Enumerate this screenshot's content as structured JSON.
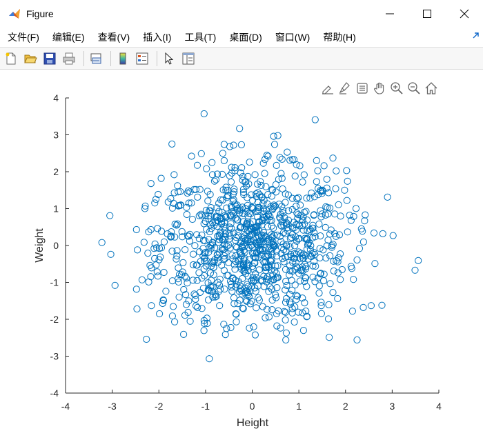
{
  "window": {
    "title": "Figure",
    "icon": "matlab-icon",
    "controls": [
      "minimize-icon",
      "maximize-icon",
      "close-icon"
    ]
  },
  "menu": {
    "items": [
      {
        "label": "文件(F)"
      },
      {
        "label": "编辑(E)"
      },
      {
        "label": "查看(V)"
      },
      {
        "label": "插入(I)"
      },
      {
        "label": "工具(T)"
      },
      {
        "label": "桌面(D)"
      },
      {
        "label": "窗口(W)"
      },
      {
        "label": "帮助(H)"
      }
    ]
  },
  "toolbar": {
    "icons": [
      "new-figure-icon",
      "open-file-icon",
      "save-icon",
      "print-icon",
      "link-plot-icon",
      "colorbar-icon",
      "legend-icon",
      "edit-plot-icon",
      "property-inspector-icon"
    ]
  },
  "axes_toolbar": {
    "icons": [
      "data-tips-icon",
      "brush-icon",
      "export-icon",
      "pan-icon",
      "zoom-in-icon",
      "zoom-out-icon",
      "home-icon"
    ]
  },
  "colors": {
    "marker": "#0072bd",
    "axis": "#262626"
  },
  "chart_data": {
    "type": "scatter",
    "title": "",
    "xlabel": "Height",
    "ylabel": "Weight",
    "xlim": [
      -4,
      4
    ],
    "ylim": [
      -4,
      4
    ],
    "xticks": [
      "-4",
      "-3",
      "-2",
      "-1",
      "0",
      "1",
      "2",
      "3",
      "4"
    ],
    "yticks": [
      "-4",
      "-3",
      "-2",
      "-1",
      "0",
      "1",
      "2",
      "3",
      "4"
    ],
    "grid": false,
    "marker": "open-circle",
    "points": [
      [
        -1.03,
        3.57
      ],
      [
        -0.27,
        3.17
      ],
      [
        0.46,
        2.96
      ],
      [
        0.55,
        2.98
      ],
      [
        1.35,
        3.41
      ],
      [
        -1.72,
        2.75
      ],
      [
        -0.6,
        2.74
      ],
      [
        -0.48,
        2.68
      ],
      [
        -0.4,
        2.72
      ],
      [
        -0.23,
        2.73
      ],
      [
        0.48,
        2.74
      ],
      [
        0.75,
        2.53
      ],
      [
        -1.3,
        2.42
      ],
      [
        -1.09,
        2.49
      ],
      [
        -0.6,
        2.3
      ],
      [
        0.34,
        2.42
      ],
      [
        0.86,
        2.33
      ],
      [
        1.38,
        2.3
      ],
      [
        1.73,
        2.37
      ],
      [
        -0.98,
        2.08
      ],
      [
        -0.37,
        2.11
      ],
      [
        0.24,
        2.23
      ],
      [
        0.52,
        2.17
      ],
      [
        1.02,
        2.16
      ],
      [
        1.54,
        2.16
      ],
      [
        1.8,
        2.02
      ],
      [
        -2.17,
        1.68
      ],
      [
        -1.95,
        1.82
      ],
      [
        -1.6,
        1.62
      ],
      [
        -0.85,
        1.92
      ],
      [
        -0.25,
        1.97
      ],
      [
        -0.2,
        1.87
      ],
      [
        0.06,
        1.92
      ],
      [
        0.64,
        1.82
      ],
      [
        0.92,
        1.88
      ],
      [
        1.08,
        1.72
      ],
      [
        1.38,
        1.73
      ],
      [
        1.79,
        1.54
      ],
      [
        1.98,
        1.5
      ],
      [
        -2.3,
        1.0
      ],
      [
        -1.67,
        1.43
      ],
      [
        -1.39,
        1.42
      ],
      [
        -1.12,
        1.52
      ],
      [
        -0.56,
        1.58
      ],
      [
        -0.18,
        1.38
      ],
      [
        0.21,
        1.32
      ],
      [
        0.51,
        1.45
      ],
      [
        0.96,
        1.27
      ],
      [
        1.27,
        1.42
      ],
      [
        1.58,
        1.05
      ],
      [
        2.03,
        1.22
      ],
      [
        2.9,
        1.31
      ],
      [
        -3.05,
        0.81
      ],
      [
        -2.48,
        0.43
      ],
      [
        -2.22,
        0.37
      ],
      [
        -2.03,
        0.46
      ],
      [
        -1.66,
        0.23
      ],
      [
        -1.28,
        0.71
      ],
      [
        -0.92,
        0.94
      ],
      [
        -0.66,
        0.59
      ],
      [
        -0.41,
        0.86
      ],
      [
        -0.1,
        0.64
      ],
      [
        0.12,
        0.92
      ],
      [
        0.38,
        0.78
      ],
      [
        0.66,
        0.95
      ],
      [
        0.94,
        0.56
      ],
      [
        1.32,
        0.82
      ],
      [
        1.69,
        0.42
      ],
      [
        2.12,
        0.68
      ],
      [
        2.42,
        0.83
      ],
      [
        2.61,
        0.34
      ],
      [
        -3.22,
        0.08
      ],
      [
        -3.03,
        -0.24
      ],
      [
        -2.46,
        -0.12
      ],
      [
        -2.19,
        -0.54
      ],
      [
        -1.97,
        -0.31
      ],
      [
        -1.61,
        -0.14
      ],
      [
        -1.34,
        0.12
      ],
      [
        -1.02,
        -0.21
      ],
      [
        -0.74,
        0.25
      ],
      [
        -0.47,
        -0.07
      ],
      [
        -0.16,
        0.19
      ],
      [
        0.18,
        -0.11
      ],
      [
        0.47,
        0.28
      ],
      [
        0.81,
        -0.04
      ],
      [
        1.16,
        0.17
      ],
      [
        1.52,
        -0.12
      ],
      [
        1.87,
        0.29
      ],
      [
        2.3,
        -0.08
      ],
      [
        2.8,
        0.32
      ],
      [
        3.02,
        0.27
      ],
      [
        -2.94,
        -1.08
      ],
      [
        -2.36,
        -0.93
      ],
      [
        -2.02,
        -0.83
      ],
      [
        -1.85,
        -1.24
      ],
      [
        -1.49,
        -0.72
      ],
      [
        -1.18,
        -0.95
      ],
      [
        -0.88,
        -0.56
      ],
      [
        -0.54,
        -0.81
      ],
      [
        -0.23,
        -0.64
      ],
      [
        0.09,
        -0.87
      ],
      [
        0.42,
        -0.53
      ],
      [
        0.72,
        -0.97
      ],
      [
        1.09,
        -0.68
      ],
      [
        1.41,
        -0.88
      ],
      [
        1.84,
        -0.74
      ],
      [
        2.17,
        -0.92
      ],
      [
        2.63,
        -0.49
      ],
      [
        3.56,
        -0.41
      ],
      [
        3.49,
        -0.67
      ],
      [
        -2.47,
        -1.72
      ],
      [
        -2.16,
        -1.63
      ],
      [
        -1.92,
        -1.57
      ],
      [
        -1.71,
        -1.91
      ],
      [
        -1.36,
        -1.5
      ],
      [
        -0.97,
        -1.97
      ],
      [
        -0.7,
        -1.63
      ],
      [
        -0.35,
        -1.85
      ],
      [
        -0.04,
        -1.58
      ],
      [
        0.28,
        -1.96
      ],
      [
        0.56,
        -1.77
      ],
      [
        0.86,
        -1.71
      ],
      [
        1.17,
        -1.93
      ],
      [
        1.48,
        -1.63
      ],
      [
        1.83,
        -1.44
      ],
      [
        2.15,
        -1.78
      ],
      [
        2.55,
        -1.63
      ],
      [
        2.78,
        -1.62
      ],
      [
        -1.47,
        -2.41
      ],
      [
        -0.55,
        -2.25
      ],
      [
        -0.34,
        -2.07
      ],
      [
        -0.06,
        -2.24
      ],
      [
        0.53,
        -2.18
      ],
      [
        0.73,
        -2.37
      ],
      [
        1.1,
        -2.3
      ],
      [
        1.65,
        -2.49
      ],
      [
        -0.92,
        -3.07
      ],
      [
        0.72,
        -2.56
      ]
    ]
  }
}
